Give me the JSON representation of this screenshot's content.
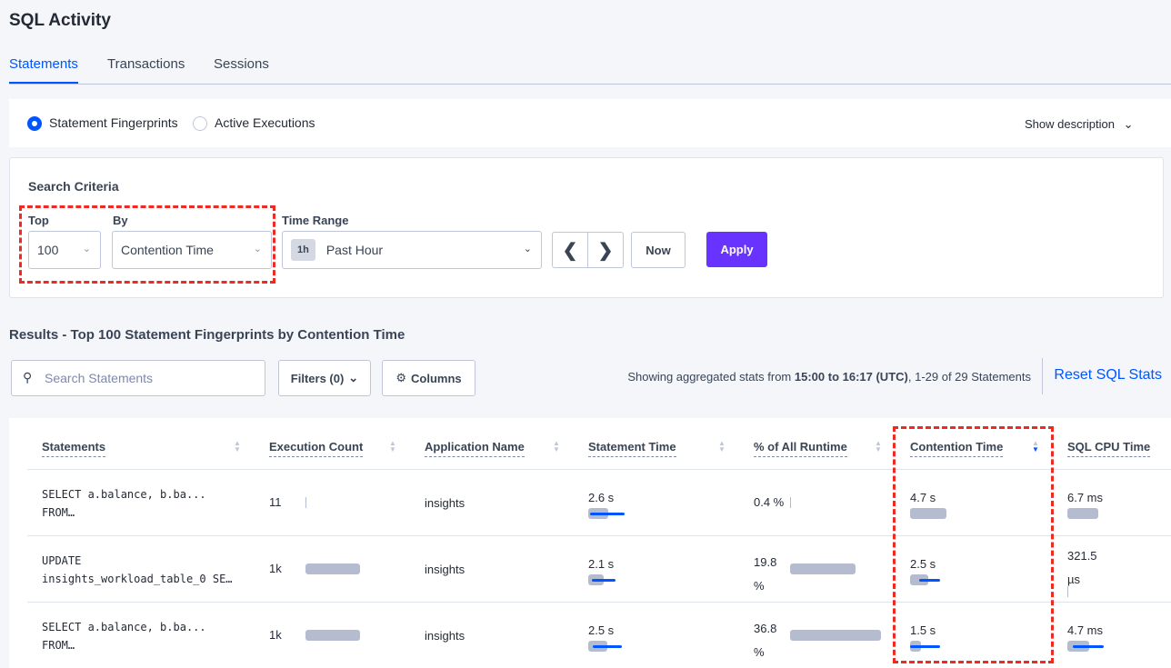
{
  "title": "SQL Activity",
  "tabs": [
    "Statements",
    "Transactions",
    "Sessions"
  ],
  "view": {
    "options": [
      "Statement Fingerprints",
      "Active Executions"
    ],
    "selected": "Statement Fingerprints",
    "show_description": "Show description"
  },
  "search_criteria": {
    "title": "Search Criteria",
    "top_label": "Top",
    "top_value": "100",
    "by_label": "By",
    "by_value": "Contention Time",
    "time_range_label": "Time Range",
    "time_badge": "1h",
    "time_value": "Past Hour",
    "now": "Now",
    "apply": "Apply"
  },
  "results": {
    "title": "Results - Top 100 Statement Fingerprints by Contention Time",
    "search_placeholder": "Search Statements",
    "filters": "Filters (0)",
    "columns": "Columns",
    "info_pre": "Showing aggregated stats from ",
    "info_bold": "15:00 to 16:17 (UTC)",
    "info_post": ", 1-29 of 29 Statements",
    "reset": "Reset SQL Stats"
  },
  "table": {
    "headers": [
      "Statements",
      "Execution Count",
      "Application Name",
      "Statement Time",
      "% of All Runtime",
      "Contention Time",
      "SQL CPU Time"
    ],
    "sorted_column": "Contention Time",
    "sort_direction": "descending",
    "rows": [
      {
        "statement_1": "SELECT a.balance, b.ba...",
        "statement_2": "FROM…",
        "exec": "11",
        "app": "insights",
        "stmt_time": "2.6 s",
        "runtime": "0.4 %",
        "contention": "4.7 s",
        "cpu": "6.7 ms"
      },
      {
        "statement_1": "UPDATE",
        "statement_2": "insights_workload_table_0 SE…",
        "exec": "1k",
        "app": "insights",
        "stmt_time": "2.1 s",
        "runtime": "19.8 %",
        "contention": "2.5 s",
        "cpu": "321.5 µs"
      },
      {
        "statement_1": "SELECT a.balance, b.ba...",
        "statement_2": "FROM…",
        "exec": "1k",
        "app": "insights",
        "stmt_time": "2.5 s",
        "runtime": "36.8 %",
        "contention": "1.5 s",
        "cpu": "4.7 ms"
      }
    ]
  },
  "colors": {
    "accent": "#0055ff",
    "apply": "#6933ff",
    "highlight": "#ee2a24",
    "bar": "#b6bcd0"
  }
}
